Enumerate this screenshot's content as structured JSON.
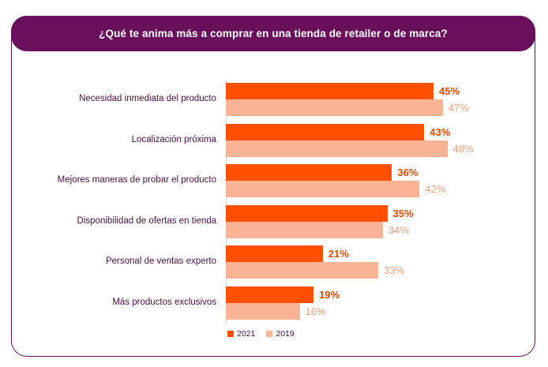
{
  "chart_data": {
    "type": "bar",
    "orientation": "horizontal",
    "title": "¿Qué te anima más a comprar en una tienda de retailer o de marca?",
    "categories": [
      "Necesidad inmediata del producto",
      "Localización próxima",
      "Mejores maneras de probar el producto",
      "Disponibilidad de ofertas en tienda",
      "Personal de ventas experto",
      "Más productos exclusivos"
    ],
    "series": [
      {
        "name": "2021",
        "values": [
          45,
          43,
          36,
          35,
          21,
          19
        ],
        "color": "#ff5000",
        "label_color": "#e04a00"
      },
      {
        "name": "2019",
        "values": [
          47,
          48,
          42,
          34,
          33,
          16
        ],
        "color": "#fbb396",
        "label_color": "#f4a07a"
      }
    ],
    "value_suffix": "%",
    "xlim": [
      0,
      60
    ],
    "grid": false,
    "legend_position": "bottom"
  },
  "colors": {
    "title_bg": "#6a0f5c",
    "title_text": "#ffffff",
    "label_text": "#4a1040"
  }
}
